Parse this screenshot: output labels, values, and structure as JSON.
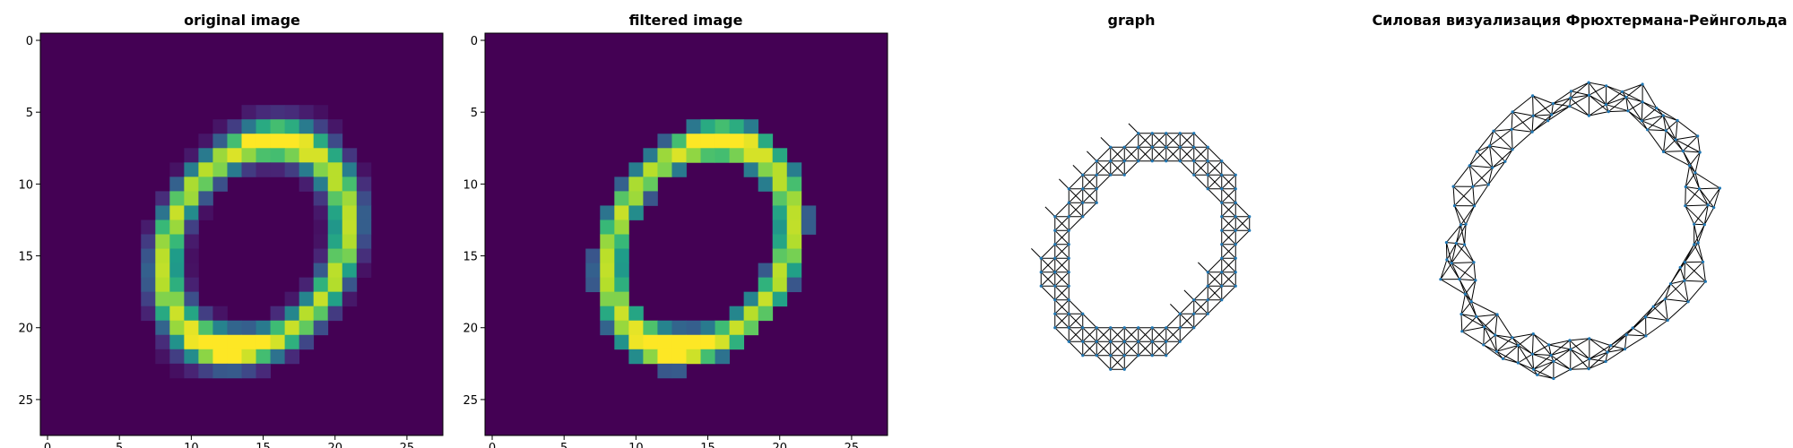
{
  "chart_data": [
    {
      "type": "heatmap",
      "title": "original image",
      "colormap": "viridis",
      "xlim": [
        -0.5,
        27.5
      ],
      "ylim": [
        27.5,
        -0.5
      ],
      "x_ticks": [
        0,
        5,
        10,
        15,
        20,
        25
      ],
      "y_ticks": [
        0,
        5,
        10,
        15,
        20,
        25
      ],
      "rows": 28,
      "cols": 28,
      "shape": "ring",
      "ring_center": [
        14.5,
        14.3
      ],
      "ring_radii": [
        6.3,
        8.8
      ],
      "ring_tilt_deg": 30,
      "blur": true,
      "bright_spots": [
        [
          16,
          6.5
        ],
        [
          12,
          21.5
        ]
      ]
    },
    {
      "type": "heatmap",
      "title": "filtered image",
      "colormap": "viridis",
      "xlim": [
        -0.5,
        27.5
      ],
      "ylim": [
        27.5,
        -0.5
      ],
      "x_ticks": [
        0,
        5,
        10,
        15,
        20,
        25
      ],
      "y_ticks": [
        0,
        5,
        10,
        15,
        20,
        25
      ],
      "rows": 28,
      "cols": 28,
      "threshold": 0.25,
      "shape": "ring",
      "bright_spots": [
        [
          16,
          6.5
        ],
        [
          12,
          21.5
        ]
      ]
    },
    {
      "type": "graph",
      "title": "graph",
      "layout": "grid",
      "node_color": "#1f77b4",
      "edge_color": "#000000",
      "source_mask": "filtered image"
    },
    {
      "type": "graph",
      "title": "Силовая визуализация Фрюхтермана-Рейнгольда",
      "layout": "fruchterman-reingold",
      "node_color": "#1f77b4",
      "edge_color": "#000000",
      "source_mask": "filtered image"
    }
  ]
}
